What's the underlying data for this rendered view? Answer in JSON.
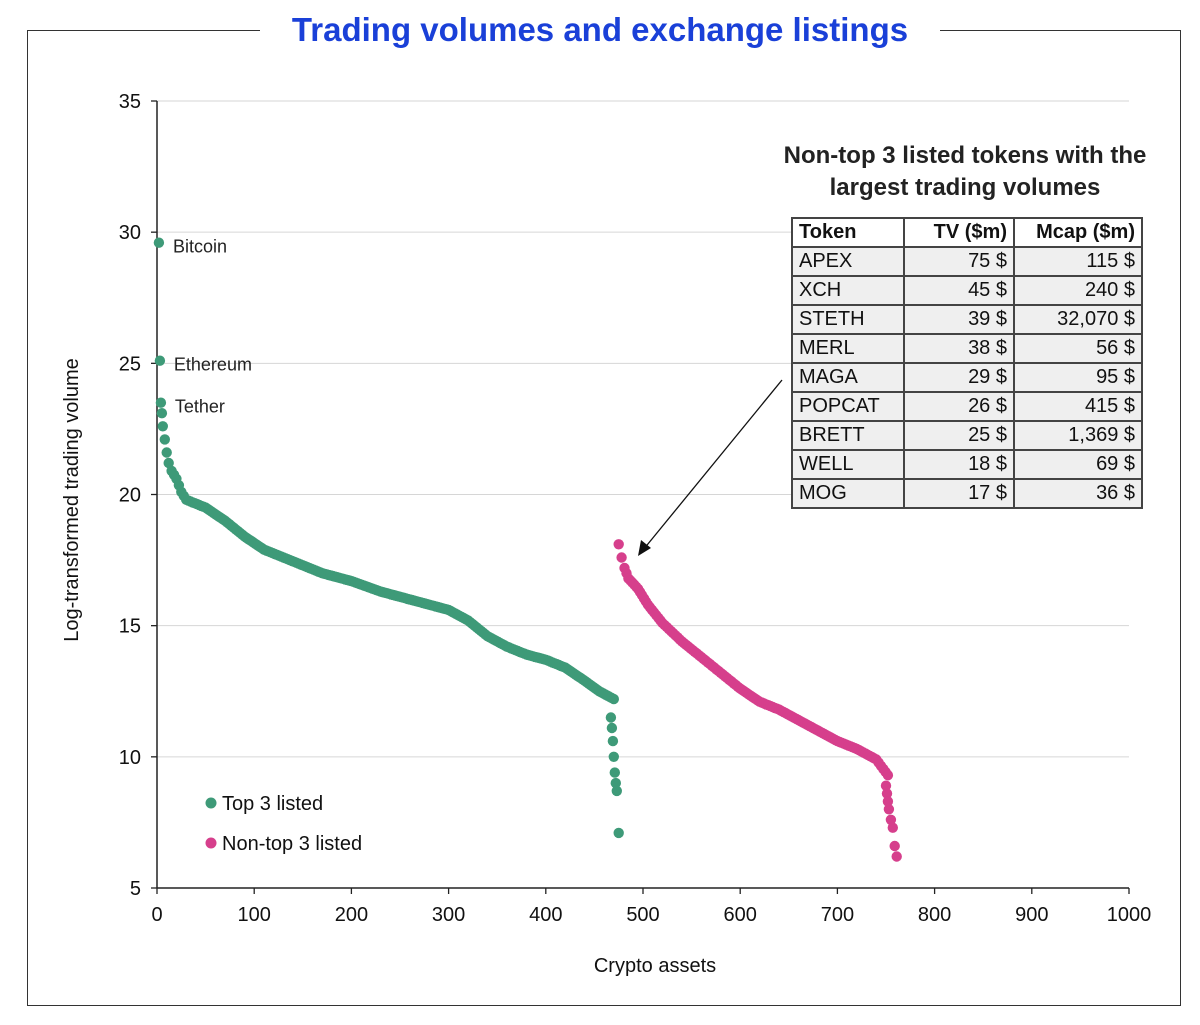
{
  "page_title": "Trading volumes and exchange listings",
  "colors": {
    "title": "#1a40d8",
    "top3": "#3e9a78",
    "nontop3": "#d63f8c",
    "axis": "#222222",
    "grid": "#d6d6d6"
  },
  "chart_data": {
    "type": "scatter",
    "title": "Trading volumes and exchange listings",
    "xlabel": "Crypto assets",
    "ylabel": "Log-transformed trading volume",
    "xlim": [
      0,
      1000
    ],
    "ylim": [
      5,
      35
    ],
    "xticks": [
      "0",
      "100",
      "200",
      "300",
      "400",
      "500",
      "600",
      "700",
      "800",
      "900",
      "1000"
    ],
    "yticks": [
      "5",
      "10",
      "15",
      "20",
      "25",
      "30",
      "35"
    ],
    "grid": true,
    "legend_position": "bottom-left",
    "annotations": [
      {
        "text": "Bitcoin",
        "x": 2,
        "y": 29.6
      },
      {
        "text": "Ethereum",
        "x": 3,
        "y": 25.1
      },
      {
        "text": "Tether",
        "x": 4,
        "y": 23.5
      }
    ],
    "series": [
      {
        "name": "Top 3 listed",
        "color": "#3e9a78",
        "curve": [
          [
            2,
            29.6
          ],
          [
            3,
            25.1
          ],
          [
            4,
            23.5
          ],
          [
            5,
            23.1
          ],
          [
            6,
            22.6
          ],
          [
            8,
            22.1
          ],
          [
            10,
            21.6
          ],
          [
            12,
            21.2
          ],
          [
            15,
            20.9
          ],
          [
            20,
            20.6
          ],
          [
            25,
            20.1
          ],
          [
            30,
            19.8
          ],
          [
            50,
            19.5
          ],
          [
            70,
            19.0
          ],
          [
            90,
            18.4
          ],
          [
            110,
            17.9
          ],
          [
            130,
            17.6
          ],
          [
            150,
            17.3
          ],
          [
            170,
            17.0
          ],
          [
            200,
            16.7
          ],
          [
            230,
            16.3
          ],
          [
            260,
            16.0
          ],
          [
            280,
            15.8
          ],
          [
            300,
            15.6
          ],
          [
            320,
            15.2
          ],
          [
            340,
            14.6
          ],
          [
            360,
            14.2
          ],
          [
            380,
            13.9
          ],
          [
            400,
            13.7
          ],
          [
            420,
            13.4
          ],
          [
            440,
            12.9
          ],
          [
            455,
            12.5
          ],
          [
            465,
            12.3
          ],
          [
            470,
            12.2
          ]
        ],
        "tail": [
          [
            467,
            11.5
          ],
          [
            468,
            11.1
          ],
          [
            469,
            10.6
          ],
          [
            470,
            10.0
          ],
          [
            471,
            9.4
          ],
          [
            472,
            9.0
          ],
          [
            473,
            8.7
          ],
          [
            475,
            7.1
          ]
        ]
      },
      {
        "name": "Non-top 3 listed",
        "color": "#d63f8c",
        "curve": [
          [
            475,
            18.1
          ],
          [
            478,
            17.6
          ],
          [
            481,
            17.2
          ],
          [
            485,
            16.8
          ],
          [
            495,
            16.4
          ],
          [
            505,
            15.8
          ],
          [
            520,
            15.1
          ],
          [
            540,
            14.4
          ],
          [
            560,
            13.8
          ],
          [
            580,
            13.2
          ],
          [
            600,
            12.6
          ],
          [
            620,
            12.1
          ],
          [
            640,
            11.8
          ],
          [
            660,
            11.4
          ],
          [
            680,
            11.0
          ],
          [
            700,
            10.6
          ],
          [
            720,
            10.3
          ],
          [
            740,
            9.9
          ],
          [
            752,
            9.3
          ]
        ],
        "tail": [
          [
            750,
            8.9
          ],
          [
            751,
            8.6
          ],
          [
            752,
            8.3
          ],
          [
            753,
            8.0
          ],
          [
            755,
            7.6
          ],
          [
            757,
            7.3
          ],
          [
            759,
            6.6
          ],
          [
            761,
            6.2
          ]
        ]
      }
    ]
  },
  "inset": {
    "title": "Non-top 3 listed tokens with the largest trading volumes",
    "headers": [
      "Token",
      "TV ($m)",
      "Mcap ($m)"
    ],
    "rows": [
      [
        "APEX",
        "75 $",
        "115 $"
      ],
      [
        "XCH",
        "45 $",
        "240 $"
      ],
      [
        "STETH",
        "39 $",
        "32,070 $"
      ],
      [
        "MERL",
        "38 $",
        "56 $"
      ],
      [
        "MAGA",
        "29 $",
        "95 $"
      ],
      [
        "POPCAT",
        "26 $",
        "415 $"
      ],
      [
        "BRETT",
        "25 $",
        "1,369 $"
      ],
      [
        "WELL",
        "18 $",
        "69 $"
      ],
      [
        "MOG",
        "17 $",
        "36 $"
      ]
    ]
  }
}
